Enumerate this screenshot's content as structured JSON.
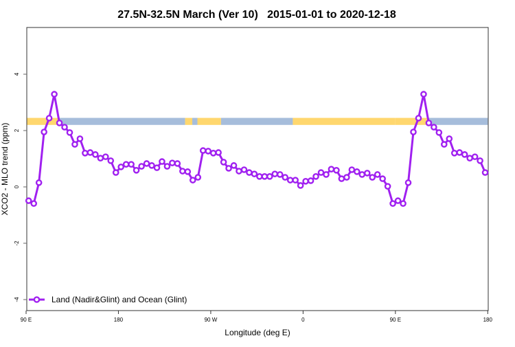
{
  "chart_data": {
    "type": "line",
    "title": "27.5N-32.5N March (Ver 10)   2015-01-01 to 2020-12-18",
    "xlabel": "Longitude (deg E)",
    "ylabel": "XCO2 - MLO trend (ppm)",
    "xlim": [
      90,
      540
    ],
    "ylim": [
      -4.4,
      5.7
    ],
    "grid": false,
    "legend_placement": "bottom-left",
    "x_ticks": [
      {
        "value": 90,
        "label": "90 E"
      },
      {
        "value": 180,
        "label": "180"
      },
      {
        "value": 270,
        "label": "90 W"
      },
      {
        "value": 360,
        "label": "0"
      },
      {
        "value": 450,
        "label": "90 E"
      },
      {
        "value": 540,
        "label": "180"
      }
    ],
    "y_ticks": [
      {
        "value": 4,
        "label": "4"
      },
      {
        "value": 2,
        "label": "2"
      },
      {
        "value": 0,
        "label": "0"
      },
      {
        "value": -2,
        "label": "-2"
      },
      {
        "value": -4,
        "label": "-4"
      }
    ],
    "surface_band": {
      "y_range": [
        2.2,
        2.45
      ],
      "colors": {
        "land": "#FFD76E",
        "ocean": "#A6BDDB"
      },
      "segments": [
        {
          "from": 90,
          "to": 122,
          "type": "land"
        },
        {
          "from": 122,
          "to": 245,
          "type": "ocean"
        },
        {
          "from": 245,
          "to": 252,
          "type": "land"
        },
        {
          "from": 252,
          "to": 257,
          "type": "ocean"
        },
        {
          "from": 257,
          "to": 280,
          "type": "land"
        },
        {
          "from": 280,
          "to": 350,
          "type": "ocean"
        },
        {
          "from": 350,
          "to": 450,
          "type": "land"
        },
        {
          "from": 450,
          "to": 482,
          "type": "land"
        },
        {
          "from": 482,
          "to": 540,
          "type": "ocean"
        }
      ]
    },
    "series": [
      {
        "name": "Land (Nadir&Glint) and Ocean (Glint)",
        "color": "#A020F0",
        "x": [
          92.5,
          97.5,
          102.5,
          107.5,
          112.5,
          117.5,
          122.5,
          127.5,
          132.5,
          137.5,
          142.5,
          147.5,
          152.5,
          157.5,
          162.5,
          167.5,
          172.5,
          177.5,
          182.5,
          187.5,
          192.5,
          197.5,
          202.5,
          207.5,
          212.5,
          217.5,
          222.5,
          227.5,
          232.5,
          237.5,
          242.5,
          247.5,
          252.5,
          257.5,
          262.5,
          267.5,
          272.5,
          277.5,
          282.5,
          287.5,
          292.5,
          297.5,
          302.5,
          307.5,
          312.5,
          317.5,
          322.5,
          327.5,
          332.5,
          337.5,
          342.5,
          347.5,
          352.5,
          357.5,
          362.5,
          367.5,
          372.5,
          377.5,
          382.5,
          387.5,
          392.5,
          397.5,
          402.5,
          407.5,
          412.5,
          417.5,
          422.5,
          427.5,
          432.5,
          437.5,
          442.5,
          447.5,
          452.5,
          457.5,
          462.5,
          467.5,
          472.5,
          477.5,
          482.5,
          487.5,
          492.5,
          497.5,
          502.5,
          507.5,
          512.5,
          517.5,
          522.5,
          527.5,
          532.5,
          537.5
        ],
        "values": [
          -0.49,
          -0.59,
          0.15,
          1.95,
          2.44,
          3.29,
          2.27,
          2.12,
          1.93,
          1.51,
          1.71,
          1.2,
          1.22,
          1.15,
          1.02,
          1.07,
          0.93,
          0.51,
          0.71,
          0.8,
          0.8,
          0.59,
          0.73,
          0.83,
          0.76,
          0.68,
          0.9,
          0.73,
          0.85,
          0.83,
          0.56,
          0.54,
          0.24,
          0.34,
          1.29,
          1.27,
          1.2,
          1.22,
          0.88,
          0.66,
          0.76,
          0.56,
          0.61,
          0.51,
          0.46,
          0.37,
          0.37,
          0.37,
          0.46,
          0.44,
          0.34,
          0.24,
          0.24,
          0.05,
          0.2,
          0.22,
          0.37,
          0.51,
          0.44,
          0.63,
          0.59,
          0.29,
          0.34,
          0.61,
          0.54,
          0.44,
          0.49,
          0.34,
          0.44,
          0.29,
          0.02,
          -0.59,
          -0.49,
          -0.59,
          0.15,
          1.95,
          2.44,
          3.29,
          2.27,
          2.12,
          1.93,
          1.51,
          1.71,
          1.2,
          1.22,
          1.15,
          1.02,
          1.07,
          0.93,
          0.51
        ]
      }
    ]
  }
}
